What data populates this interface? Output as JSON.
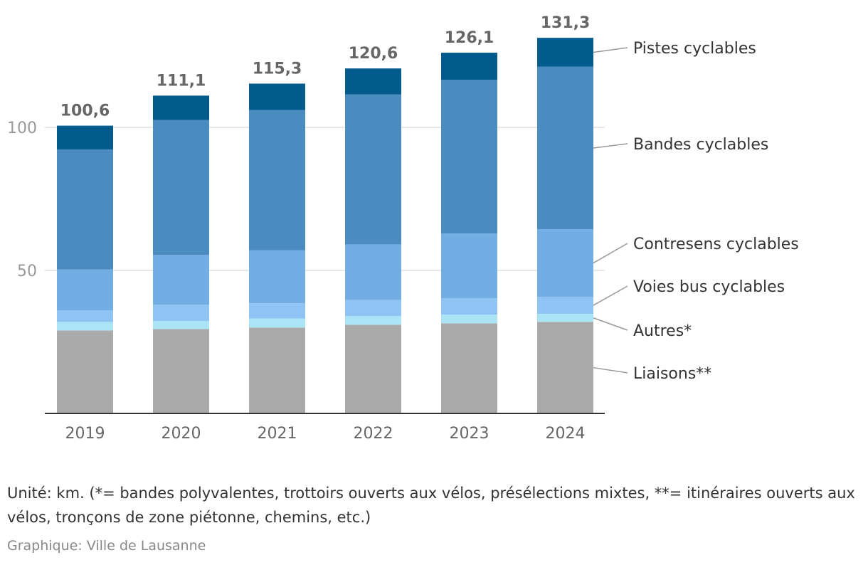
{
  "chart_data": {
    "type": "bar",
    "stacked": true,
    "categories": [
      "2019",
      "2020",
      "2021",
      "2022",
      "2023",
      "2024"
    ],
    "series": [
      {
        "name": "Liaisons**",
        "color": "#aaaaaa",
        "values": [
          29.0,
          29.5,
          30.0,
          31.0,
          31.5,
          32.0
        ]
      },
      {
        "name": "Autres*",
        "color": "#abe5f5",
        "values": [
          3.0,
          2.8,
          3.2,
          3.0,
          3.0,
          2.8
        ]
      },
      {
        "name": "Voies bus cyclables",
        "color": "#8fc3f4",
        "values": [
          4.0,
          5.7,
          5.3,
          5.7,
          5.8,
          6.0
        ]
      },
      {
        "name": "Contresens cyclables",
        "color": "#72aee4",
        "values": [
          14.3,
          17.4,
          18.5,
          19.4,
          22.6,
          23.6
        ]
      },
      {
        "name": "Bandes cyclables",
        "color": "#4a8bc0",
        "values": [
          42.0,
          47.2,
          49.1,
          52.4,
          53.7,
          56.8
        ]
      },
      {
        "name": "Pistes cyclables",
        "color": "#035a8c",
        "values": [
          8.3,
          8.5,
          9.2,
          9.1,
          9.5,
          10.1
        ]
      }
    ],
    "totals": [
      "100,6",
      "111,1",
      "115,3",
      "120,6",
      "126,1",
      "131,3"
    ],
    "total_values": [
      100.6,
      111.1,
      115.3,
      120.6,
      126.1,
      131.3
    ],
    "yticks": [
      {
        "value": 50,
        "label": "50"
      },
      {
        "value": 100,
        "label": "100"
      }
    ],
    "ylim": [
      0,
      135
    ],
    "legend": "right, direct labels",
    "grid": true
  },
  "note": "Unité: km. (*= bandes polyvalentes, trottoirs ouverts aux vélos, présélections mixtes, **= itinéraires ouverts aux vélos, tronçons de zone piétonne, chemins, etc.)",
  "source": "Graphique: Ville de Lausanne"
}
